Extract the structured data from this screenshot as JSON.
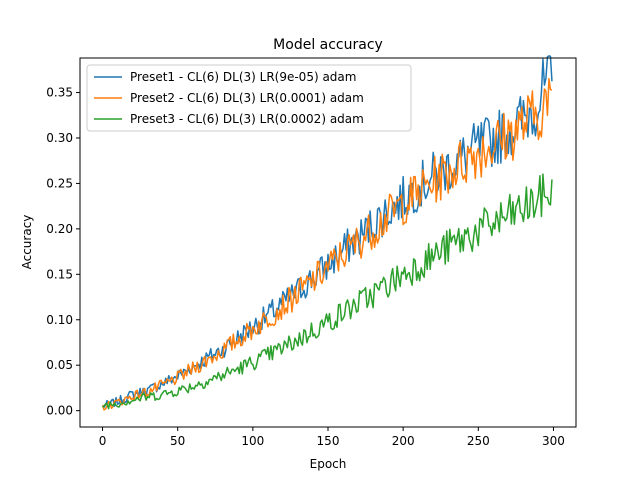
{
  "chart_data": {
    "type": "line",
    "title": "Model accuracy",
    "xlabel": "Epoch",
    "ylabel": "Accuracy",
    "xlim": [
      -15,
      315
    ],
    "ylim": [
      -0.018,
      0.388
    ],
    "xticks": [
      0,
      50,
      100,
      150,
      200,
      250,
      300
    ],
    "yticks": [
      0.0,
      0.05,
      0.1,
      0.15,
      0.2,
      0.25,
      0.3,
      0.35
    ],
    "ytick_labels": [
      "0.00",
      "0.05",
      "0.10",
      "0.15",
      "0.20",
      "0.25",
      "0.30",
      "0.35"
    ],
    "legend_position": "upper-left",
    "grid": false,
    "series": [
      {
        "name": "Preset1 - CL(6) DL(3) LR(9e-05) adam",
        "color": "#1f77b4",
        "x": [
          0,
          10,
          20,
          30,
          40,
          50,
          60,
          70,
          80,
          90,
          100,
          110,
          120,
          130,
          140,
          150,
          160,
          170,
          180,
          190,
          200,
          210,
          220,
          230,
          240,
          250,
          260,
          270,
          280,
          290,
          295,
          299
        ],
        "y": [
          0.005,
          0.01,
          0.018,
          0.022,
          0.03,
          0.038,
          0.048,
          0.058,
          0.068,
          0.08,
          0.092,
          0.105,
          0.118,
          0.132,
          0.146,
          0.16,
          0.176,
          0.19,
          0.205,
          0.22,
          0.233,
          0.246,
          0.258,
          0.268,
          0.279,
          0.29,
          0.298,
          0.308,
          0.32,
          0.34,
          0.36,
          0.358
        ]
      },
      {
        "name": "Preset2 - CL(6) DL(3) LR(0.0001) adam",
        "color": "#ff7f0e",
        "x": [
          0,
          10,
          20,
          30,
          40,
          50,
          60,
          70,
          80,
          90,
          100,
          110,
          120,
          130,
          140,
          150,
          160,
          170,
          180,
          190,
          200,
          210,
          220,
          230,
          240,
          250,
          260,
          270,
          280,
          290,
          295,
          299
        ],
        "y": [
          0.004,
          0.009,
          0.016,
          0.021,
          0.028,
          0.036,
          0.046,
          0.056,
          0.066,
          0.078,
          0.09,
          0.102,
          0.115,
          0.129,
          0.143,
          0.158,
          0.172,
          0.186,
          0.2,
          0.214,
          0.228,
          0.24,
          0.252,
          0.263,
          0.274,
          0.285,
          0.293,
          0.303,
          0.315,
          0.328,
          0.34,
          0.332
        ]
      },
      {
        "name": "Preset3 - CL(6) DL(3) LR(0.0002) adam",
        "color": "#2ca02c",
        "x": [
          0,
          10,
          20,
          30,
          40,
          50,
          60,
          70,
          80,
          90,
          100,
          110,
          120,
          130,
          140,
          150,
          160,
          170,
          180,
          190,
          200,
          210,
          220,
          230,
          240,
          250,
          260,
          270,
          280,
          290,
          295,
          299
        ],
        "y": [
          0.006,
          0.008,
          0.012,
          0.015,
          0.018,
          0.022,
          0.027,
          0.033,
          0.039,
          0.046,
          0.053,
          0.061,
          0.069,
          0.078,
          0.088,
          0.098,
          0.108,
          0.118,
          0.128,
          0.139,
          0.15,
          0.16,
          0.17,
          0.18,
          0.189,
          0.198,
          0.206,
          0.214,
          0.222,
          0.232,
          0.24,
          0.236
        ]
      }
    ]
  }
}
